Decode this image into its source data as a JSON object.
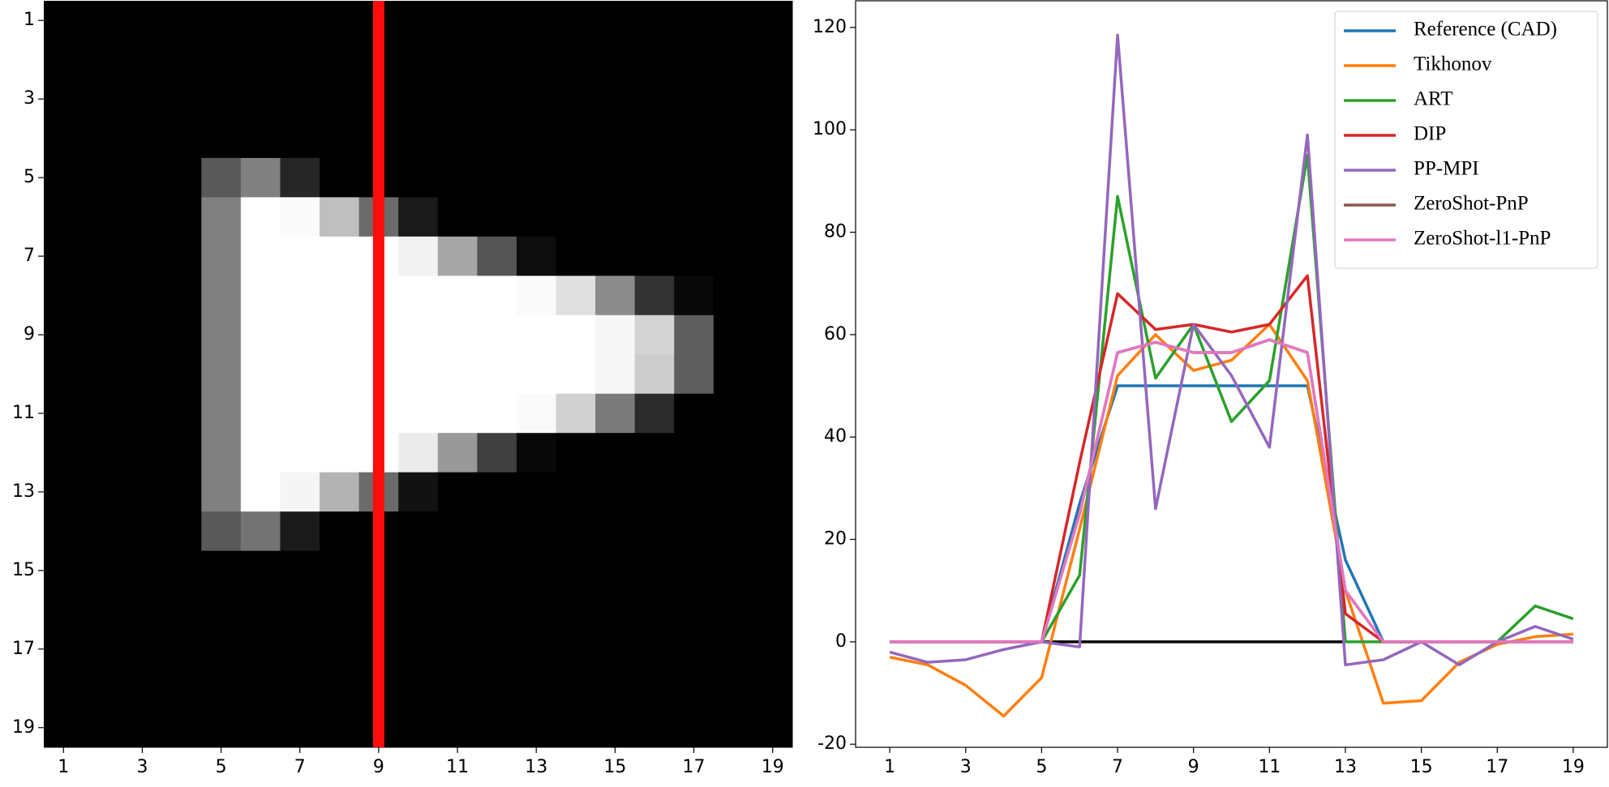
{
  "chart_data": [
    {
      "type": "heatmap",
      "xlim": [
        0.5,
        19.5
      ],
      "ylim": [
        19.5,
        0.5
      ],
      "xticks": [
        1,
        3,
        5,
        7,
        9,
        11,
        13,
        15,
        17,
        19
      ],
      "yticks": [
        1,
        3,
        5,
        7,
        9,
        11,
        13,
        15,
        17,
        19
      ],
      "line_x": 9,
      "line_color": "#ff0d0d",
      "values": [
        [
          0,
          0,
          0,
          0,
          0,
          0,
          0,
          0,
          0,
          0,
          0,
          0,
          0,
          0,
          0,
          0,
          0,
          0,
          0
        ],
        [
          0,
          0,
          0,
          0,
          0,
          0,
          0,
          0,
          0,
          0,
          0,
          0,
          0,
          0,
          0,
          0,
          0,
          0,
          0
        ],
        [
          0,
          0,
          0,
          0,
          0,
          0,
          0,
          0,
          0,
          0,
          0,
          0,
          0,
          0,
          0,
          0,
          0,
          0,
          0
        ],
        [
          0,
          0,
          0,
          0,
          0,
          0,
          0,
          0,
          0,
          0,
          0,
          0,
          0,
          0,
          0,
          0,
          0,
          0,
          0
        ],
        [
          0,
          0,
          0,
          0,
          0.35,
          0.5,
          0.15,
          0,
          0,
          0,
          0,
          0,
          0,
          0,
          0,
          0,
          0,
          0,
          0
        ],
        [
          0,
          0,
          0,
          0,
          0.5,
          1,
          0.98,
          0.75,
          0.42,
          0.1,
          0,
          0,
          0,
          0,
          0,
          0,
          0,
          0,
          0
        ],
        [
          0,
          0,
          0,
          0,
          0.5,
          1,
          1,
          1,
          1,
          0.95,
          0.65,
          0.33,
          0.05,
          0,
          0,
          0,
          0,
          0,
          0
        ],
        [
          0,
          0,
          0,
          0,
          0.5,
          1,
          1,
          1,
          1,
          1,
          1,
          1,
          0.98,
          0.88,
          0.55,
          0.2,
          0.03,
          0,
          0
        ],
        [
          0,
          0,
          0,
          0,
          0.5,
          1,
          1,
          1,
          1,
          1,
          1,
          1,
          1,
          1,
          0.97,
          0.83,
          0.37,
          0,
          0
        ],
        [
          0,
          0,
          0,
          0,
          0.5,
          1,
          1,
          1,
          1,
          1,
          1,
          1,
          1,
          1,
          0.97,
          0.8,
          0.37,
          0,
          0
        ],
        [
          0,
          0,
          0,
          0,
          0.5,
          1,
          1,
          1,
          1,
          1,
          1,
          1,
          0.98,
          0.82,
          0.48,
          0.17,
          0,
          0,
          0
        ],
        [
          0,
          0,
          0,
          0,
          0.5,
          1,
          1,
          1,
          1,
          0.92,
          0.6,
          0.25,
          0.03,
          0,
          0,
          0,
          0,
          0,
          0
        ],
        [
          0,
          0,
          0,
          0,
          0.5,
          1,
          0.96,
          0.7,
          0.42,
          0.07,
          0,
          0,
          0,
          0,
          0,
          0,
          0,
          0,
          0
        ],
        [
          0,
          0,
          0,
          0,
          0.35,
          0.45,
          0.1,
          0,
          0,
          0,
          0,
          0,
          0,
          0,
          0,
          0,
          0,
          0,
          0
        ],
        [
          0,
          0,
          0,
          0,
          0,
          0,
          0,
          0,
          0,
          0,
          0,
          0,
          0,
          0,
          0,
          0,
          0,
          0,
          0
        ],
        [
          0,
          0,
          0,
          0,
          0,
          0,
          0,
          0,
          0,
          0,
          0,
          0,
          0,
          0,
          0,
          0,
          0,
          0,
          0
        ],
        [
          0,
          0,
          0,
          0,
          0,
          0,
          0,
          0,
          0,
          0,
          0,
          0,
          0,
          0,
          0,
          0,
          0,
          0,
          0
        ],
        [
          0,
          0,
          0,
          0,
          0,
          0,
          0,
          0,
          0,
          0,
          0,
          0,
          0,
          0,
          0,
          0,
          0,
          0,
          0
        ],
        [
          0,
          0,
          0,
          0,
          0,
          0,
          0,
          0,
          0,
          0,
          0,
          0,
          0,
          0,
          0,
          0,
          0,
          0,
          0
        ]
      ]
    },
    {
      "type": "line",
      "xlim": [
        0.1,
        19.9
      ],
      "ylim": [
        -20.6,
        125.2
      ],
      "xticks": [
        1,
        3,
        5,
        7,
        9,
        11,
        13,
        15,
        17,
        19
      ],
      "yticks": [
        -20,
        0,
        20,
        40,
        60,
        80,
        100,
        120
      ],
      "legend": "upper right",
      "x": [
        1,
        2,
        3,
        4,
        5,
        6,
        7,
        8,
        9,
        10,
        11,
        12,
        13,
        14,
        15,
        16,
        17,
        18,
        19
      ],
      "reference_line": {
        "x": [
          5,
          13
        ],
        "y": [
          0,
          0
        ],
        "color": "#000000"
      },
      "series": [
        {
          "name": "Reference (CAD)",
          "color": "#1f77b4",
          "values": [
            0,
            0,
            0,
            0,
            0,
            27,
            50,
            50,
            50,
            50,
            50,
            50,
            16,
            0,
            0,
            0,
            0,
            0,
            0
          ]
        },
        {
          "name": "Tikhonov",
          "color": "#ff7f0e",
          "values": [
            -3,
            -4.5,
            -8.5,
            -14.5,
            -7,
            22,
            52,
            60,
            53,
            55,
            62,
            51,
            10,
            -12,
            -11.5,
            -4,
            -0.5,
            1,
            1.5
          ]
        },
        {
          "name": "ART",
          "color": "#2ca02c",
          "values": [
            0,
            0,
            0,
            0,
            0,
            13,
            87,
            51.5,
            62,
            43,
            51,
            95,
            0,
            0,
            0,
            0,
            0,
            7,
            4.5
          ]
        },
        {
          "name": "DIP",
          "color": "#d62728",
          "values": [
            0,
            0,
            0,
            0,
            0,
            35,
            68,
            61,
            62,
            60.5,
            62,
            71.5,
            5.5,
            0,
            0,
            0,
            0,
            0,
            0
          ]
        },
        {
          "name": "PP-MPI",
          "color": "#9467bd",
          "values": [
            -2,
            -4,
            -3.5,
            -1.5,
            0,
            -1,
            118.5,
            26,
            62,
            52,
            38,
            99,
            -4.5,
            -3.5,
            0,
            -4.5,
            0,
            3,
            0.5
          ]
        },
        {
          "name": "ZeroShot-PnP",
          "color": "#8c564b",
          "values": [
            0,
            0,
            0,
            0,
            0,
            25,
            56.5,
            58.5,
            56.5,
            56.5,
            59,
            56.5,
            10,
            0,
            0,
            0,
            0,
            0,
            0
          ]
        },
        {
          "name": "ZeroShot-l1-PnP",
          "color": "#e377c2",
          "values": [
            0,
            0,
            0,
            0,
            0,
            25,
            56.5,
            58.5,
            56.5,
            56.5,
            59,
            56.5,
            10,
            0,
            0,
            0,
            0,
            0,
            0
          ]
        }
      ]
    }
  ]
}
